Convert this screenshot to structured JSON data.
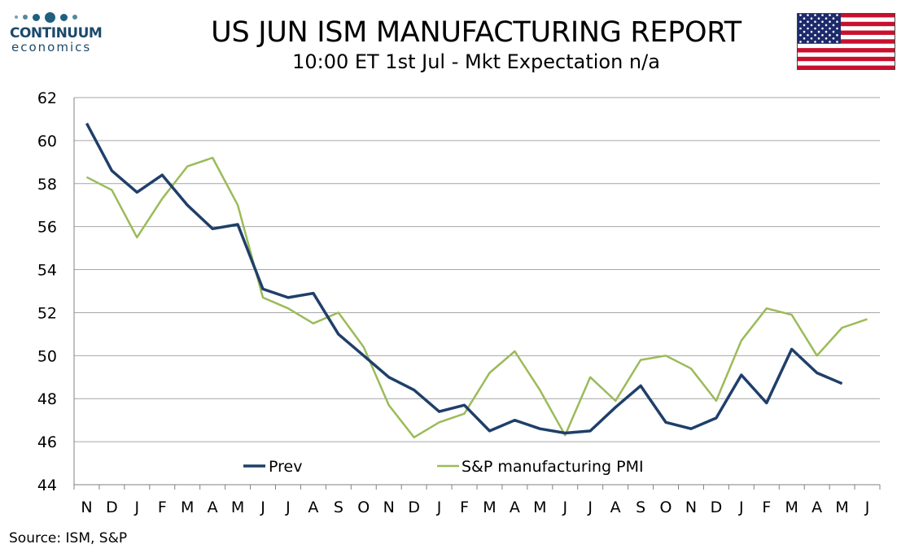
{
  "header": {
    "brand_name": "CONTINUUM",
    "brand_sub": "economics",
    "title": "US JUN ISM MANUFACTURING REPORT",
    "subtitle": "10:00 ET 1st Jul - Mkt Expectation n/a",
    "flag_icon": "us-flag-icon"
  },
  "footer": {
    "source": "Source: ISM, S&P"
  },
  "colors": {
    "prev": "#1f3f6a",
    "spmi": "#9bbb59",
    "grid": "#a6a6a6",
    "logo": "#1b4a6b"
  },
  "chart_data": {
    "type": "line",
    "title": "US JUN ISM MANUFACTURING REPORT",
    "categories": [
      "N",
      "D",
      "J",
      "F",
      "M",
      "A",
      "M",
      "J",
      "J",
      "A",
      "S",
      "O",
      "N",
      "D",
      "J",
      "F",
      "M",
      "A",
      "M",
      "J",
      "J",
      "A",
      "S",
      "O",
      "N",
      "D",
      "J",
      "F",
      "M",
      "A",
      "M",
      "J"
    ],
    "ylim": [
      44,
      62
    ],
    "yticks": [
      44,
      46,
      48,
      50,
      52,
      54,
      56,
      58,
      60,
      62
    ],
    "grid": true,
    "legend_position": "bottom-inside",
    "series": [
      {
        "name": "Prev",
        "color": "#1f3f6a",
        "values": [
          60.8,
          58.6,
          57.6,
          58.4,
          57.0,
          55.9,
          56.1,
          53.1,
          52.7,
          52.9,
          51.0,
          50.0,
          49.0,
          48.4,
          47.4,
          47.7,
          46.5,
          47.0,
          46.6,
          46.4,
          46.5,
          47.6,
          48.6,
          46.9,
          46.6,
          47.1,
          49.1,
          47.8,
          50.3,
          49.2,
          48.7,
          null
        ]
      },
      {
        "name": "S&P manufacturing PMI",
        "color": "#9bbb59",
        "values": [
          58.3,
          57.7,
          55.5,
          57.3,
          58.8,
          59.2,
          57.0,
          52.7,
          52.2,
          51.5,
          52.0,
          50.4,
          47.7,
          46.2,
          46.9,
          47.3,
          49.2,
          50.2,
          48.4,
          46.3,
          49.0,
          47.9,
          49.8,
          50.0,
          49.4,
          47.9,
          50.7,
          52.2,
          51.9,
          50.0,
          51.3,
          51.7
        ]
      }
    ]
  }
}
